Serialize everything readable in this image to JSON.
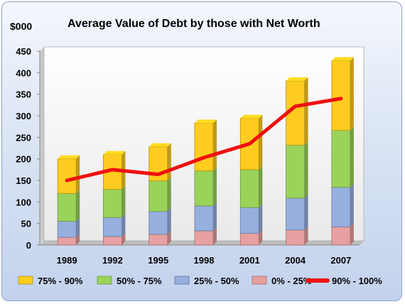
{
  "chart_data": {
    "type": "bar",
    "title": "Average Value of Debt by those with Net Worth",
    "ylabel": "$000",
    "ylim": [
      0,
      450
    ],
    "yticks": [
      0,
      50,
      100,
      150,
      200,
      250,
      300,
      350,
      400,
      450
    ],
    "categories": [
      "1989",
      "1992",
      "1995",
      "1998",
      "2001",
      "2004",
      "2007"
    ],
    "series": [
      {
        "name": "0% - 25%",
        "kind": "bar",
        "color": "#e8a0a0",
        "values": [
          18,
          20,
          25,
          33,
          27,
          35,
          42
        ]
      },
      {
        "name": "25% - 50%",
        "kind": "bar",
        "color": "#96afdf",
        "values": [
          37,
          44,
          53,
          58,
          60,
          74,
          92
        ]
      },
      {
        "name": "50% - 75%",
        "kind": "bar",
        "color": "#9ad35a",
        "values": [
          65,
          65,
          71,
          81,
          88,
          123,
          132
        ]
      },
      {
        "name": "75% - 90%",
        "kind": "bar",
        "color": "#ffcc1f",
        "values": [
          80,
          81,
          79,
          111,
          119,
          149,
          162
        ]
      },
      {
        "name": "90% - 100%",
        "kind": "line",
        "color": "#ee1111",
        "values": [
          150,
          175,
          164,
          203,
          235,
          322,
          340
        ]
      }
    ],
    "legend_order": [
      "75% - 90%",
      "50% - 75%",
      "25% - 50%",
      "0% - 25%",
      "90% - 100%"
    ],
    "legend": "bottom",
    "grid": false
  }
}
